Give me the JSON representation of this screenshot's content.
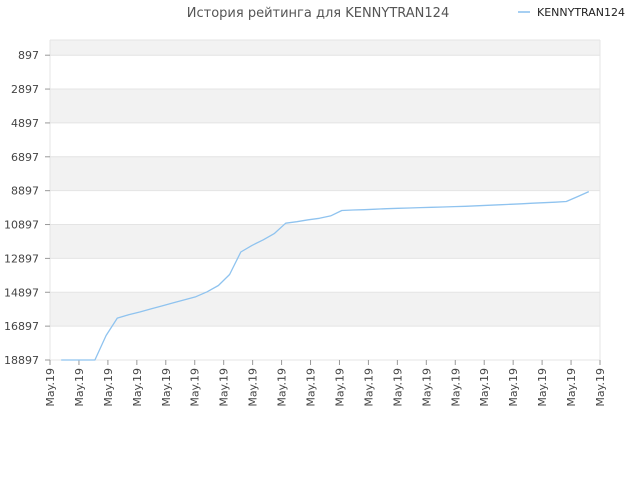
{
  "chart_data": {
    "type": "line",
    "title": "История рейтинга для KENNYTRAN124",
    "legend": {
      "position": "top-right"
    },
    "series": [
      {
        "name": "KENNYTRAN124",
        "color": "#8fc3ef",
        "x": [
          1,
          2,
          3,
          4,
          5,
          6,
          7,
          8,
          9,
          10,
          11,
          12,
          13,
          14,
          15,
          16,
          17,
          18,
          19,
          20,
          21,
          22,
          23,
          24,
          25,
          26,
          27,
          28,
          29,
          30,
          31,
          32,
          33,
          34,
          35,
          36,
          37,
          38,
          39,
          40,
          41,
          42,
          43,
          44,
          45,
          46,
          47,
          48
        ],
        "values": [
          18897,
          18897,
          18897,
          18897,
          17450,
          16420,
          16230,
          16060,
          15880,
          15700,
          15520,
          15340,
          15160,
          14870,
          14500,
          13850,
          12520,
          12130,
          11800,
          11420,
          10820,
          10730,
          10620,
          10530,
          10390,
          10070,
          10040,
          10020,
          9990,
          9960,
          9940,
          9920,
          9900,
          9880,
          9860,
          9840,
          9820,
          9790,
          9760,
          9730,
          9700,
          9670,
          9640,
          9610,
          9580,
          9540,
          9250,
          8950
        ]
      }
    ],
    "yticks": [
      "897",
      "2897",
      "4897",
      "6897",
      "8897",
      "10897",
      "12897",
      "14897",
      "16897",
      "18897"
    ],
    "yticks_values": [
      897,
      2897,
      4897,
      6897,
      8897,
      10897,
      12897,
      14897,
      16897,
      18897
    ],
    "ylim": [
      18897,
      897
    ],
    "y_inverted": true,
    "ylim_top_data": 0,
    "xticks": [
      "May.19",
      "May.19",
      "May.19",
      "May.19",
      "May.19",
      "May.19",
      "May.19",
      "May.19",
      "May.19",
      "May.19",
      "May.19",
      "May.19",
      "May.19",
      "May.19",
      "May.19",
      "May.19",
      "May.19",
      "May.19",
      "May.19",
      "May.19"
    ],
    "grid": true,
    "band_colors": [
      "#f2f2f2",
      "#ffffff"
    ]
  }
}
